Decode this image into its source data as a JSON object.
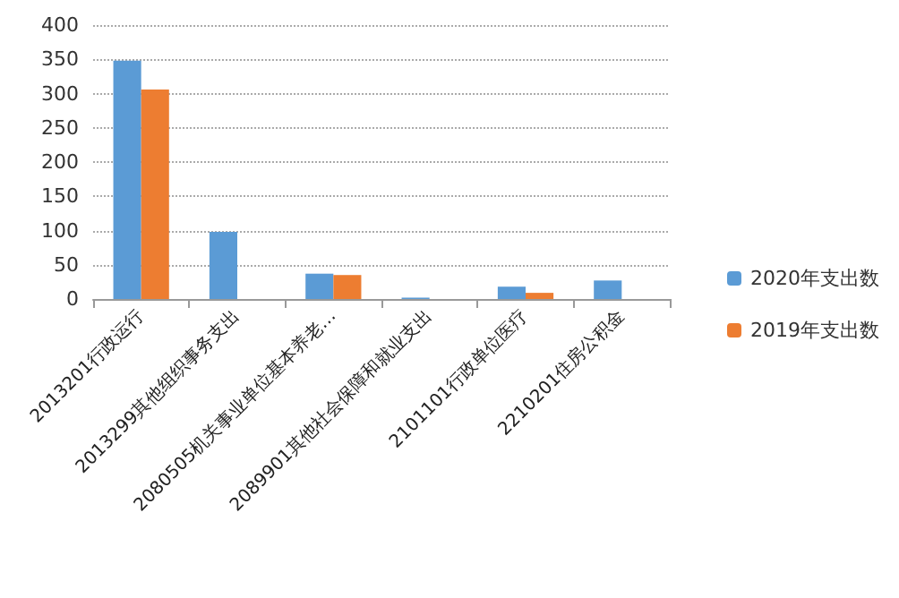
{
  "chart_data": {
    "type": "bar",
    "categories": [
      "2013201行政运行",
      "2013299其他组织事务支出",
      "2080505机关事业单位基本养老…",
      "2089901其他社会保障和就业支出",
      "2101101行政单位医疗",
      "2210201住房公积金"
    ],
    "series": [
      {
        "name": "2020年支出数",
        "color": "#5b9bd5",
        "values": [
          348,
          98,
          37,
          2,
          18,
          27
        ]
      },
      {
        "name": "2019年支出数",
        "color": "#ed7d31",
        "values": [
          306,
          null,
          35,
          null,
          9,
          null
        ]
      }
    ],
    "ylim": [
      0,
      400
    ],
    "yticks": [
      0,
      50,
      100,
      150,
      200,
      250,
      300,
      350,
      400
    ],
    "grid": "y",
    "legend": "right"
  }
}
